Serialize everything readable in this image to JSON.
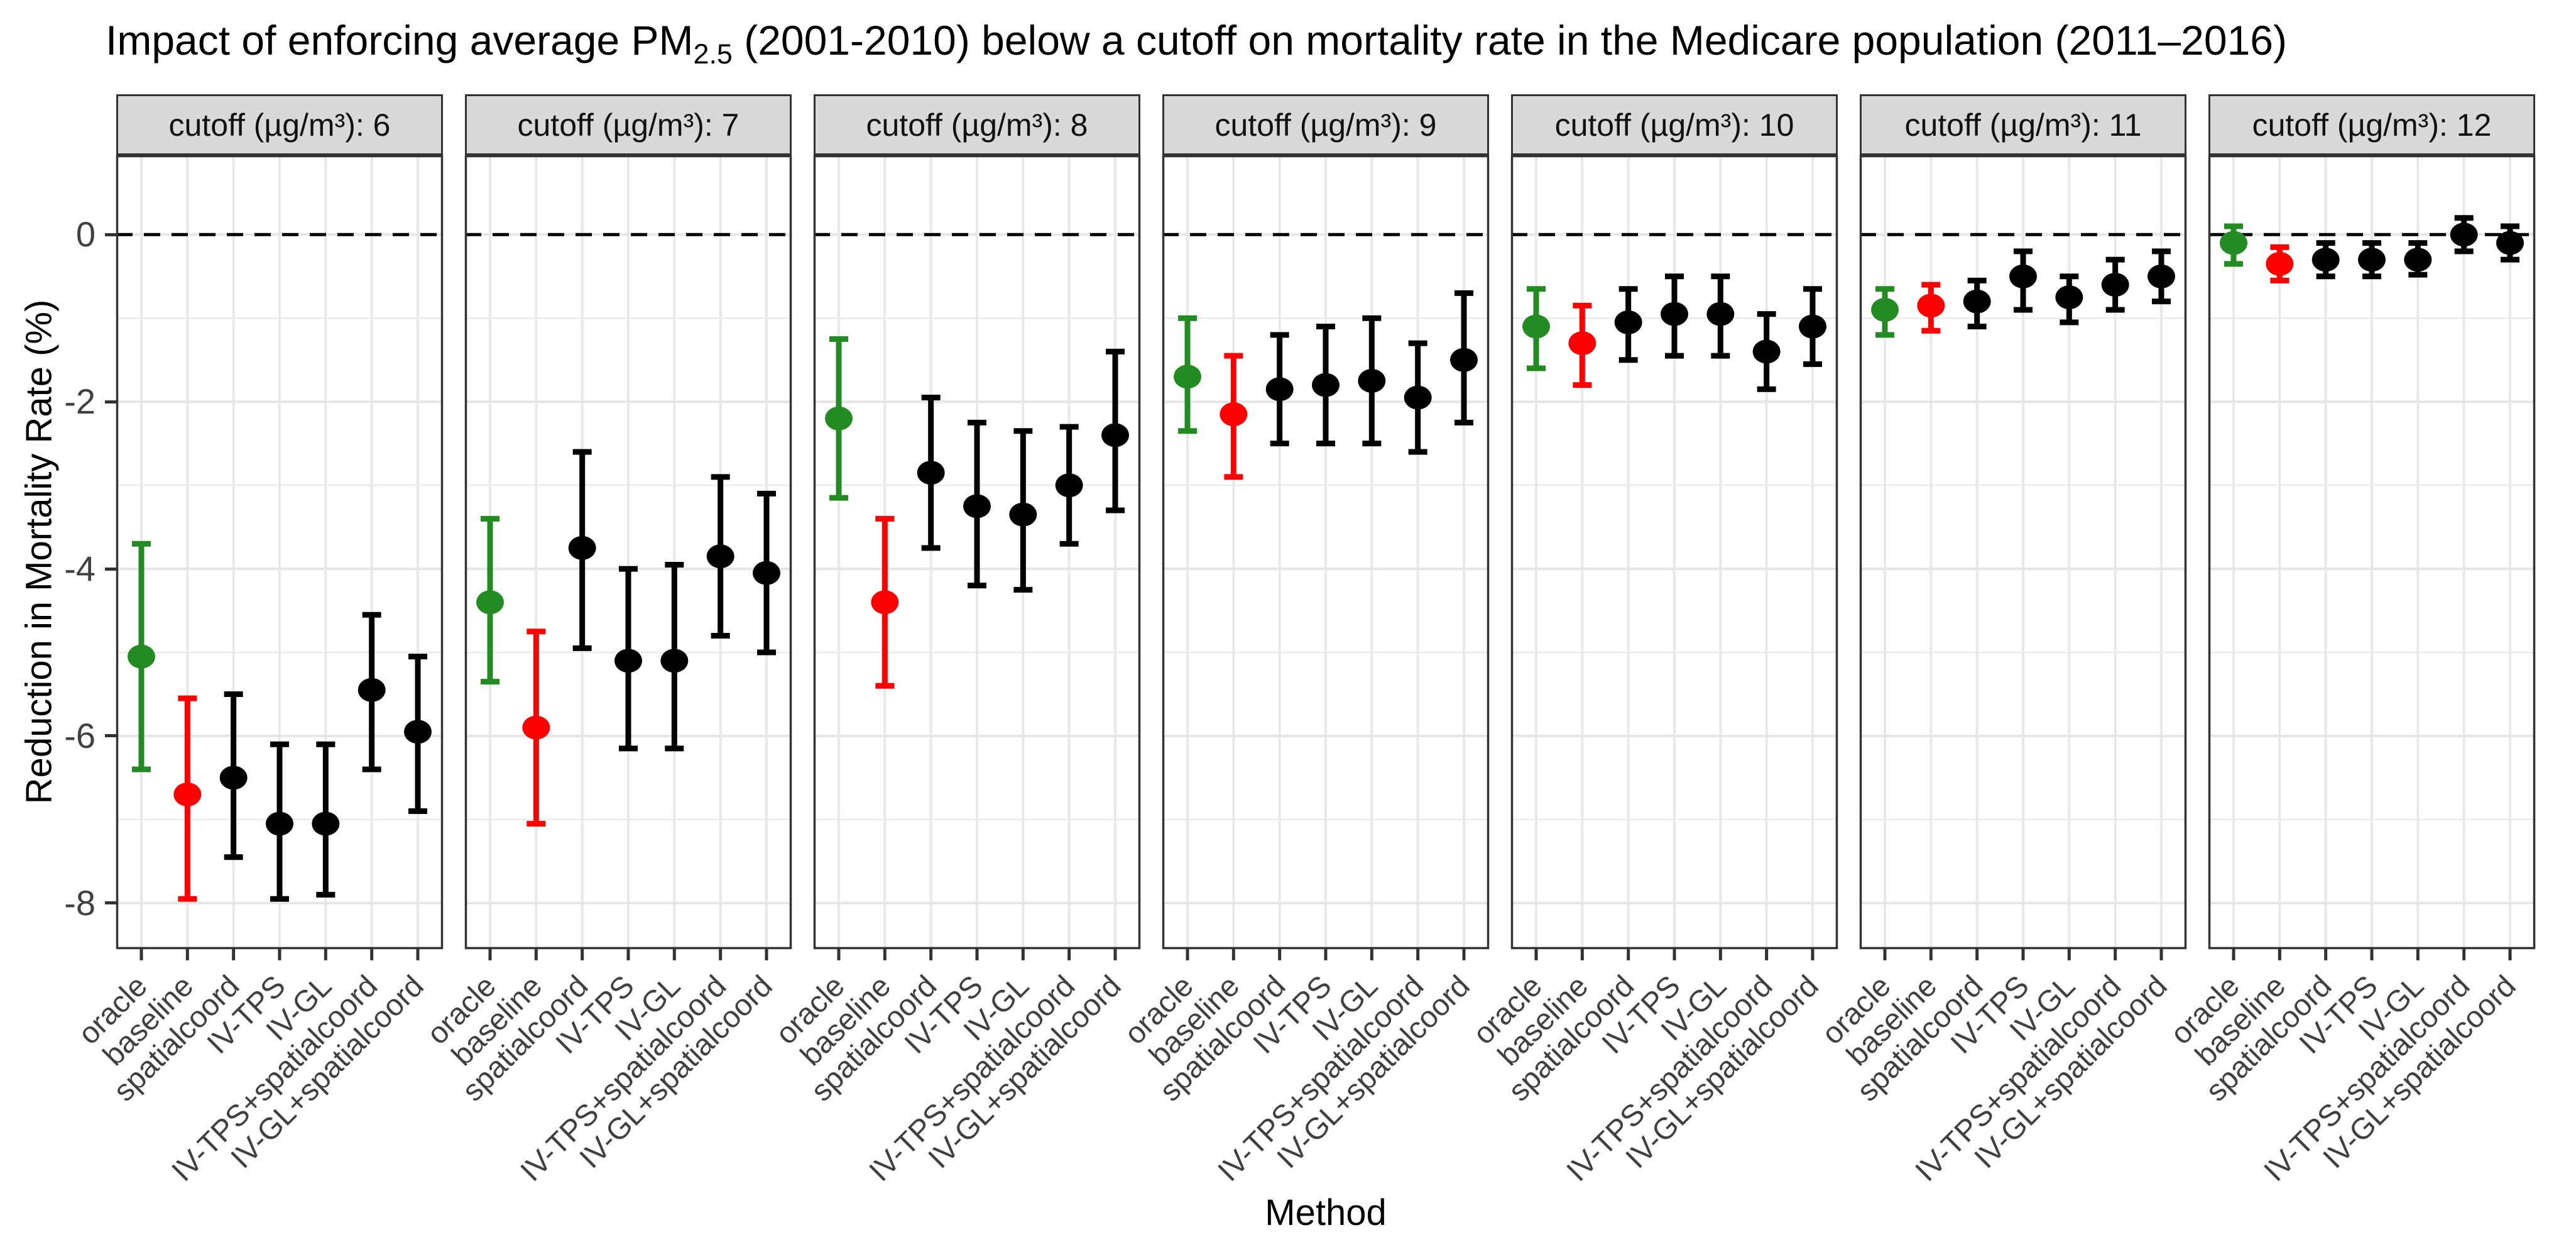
{
  "title": {
    "prefix": "Impact of enforcing average PM",
    "subscript": "2.5",
    "suffix": " (2001-2010) below a cutoff on mortality rate in the Medicare population (2011–2016)"
  },
  "y_axis": {
    "label": "Reduction in Mortality Rate (%)",
    "tick_values": [
      0,
      -2,
      -4,
      -6,
      -8
    ],
    "tick_labels": [
      "0",
      "-2",
      "-4",
      "-6",
      "-8"
    ]
  },
  "x_axis": {
    "label": "Method"
  },
  "chart_data": {
    "type": "pointrange",
    "facet_variable": "cutoff (µg/m³)",
    "grid": true,
    "legend_position": "none",
    "ylim": [
      0.95,
      -8.55
    ],
    "zero_reference_line": 0,
    "minor_gridlines": [
      -1,
      -3,
      -5,
      -7
    ],
    "methods": [
      "oracle",
      "baseline",
      "spatialcoord",
      "IV-TPS",
      "IV-GL",
      "IV-TPS+spatialcoord",
      "IV-GL+spatialcoord"
    ],
    "point_colors": [
      "#228B22",
      "#FF0000",
      "#000000",
      "#000000",
      "#000000",
      "#000000",
      "#000000"
    ],
    "color_legend": {
      "oracle": "#228B22",
      "baseline": "#FF0000",
      "other_methods": "#000000"
    },
    "facets": [
      {
        "label": "cutoff (µg/m³): 6",
        "cutoff": 6,
        "estimates": [
          -5.05,
          -6.7,
          -6.5,
          -7.05,
          -7.05,
          -5.45,
          -5.95
        ],
        "lower": [
          -6.4,
          -7.95,
          -7.45,
          -7.95,
          -7.9,
          -6.4,
          -6.9
        ],
        "upper": [
          -3.7,
          -5.55,
          -5.5,
          -6.1,
          -6.1,
          -4.55,
          -5.05
        ]
      },
      {
        "label": "cutoff (µg/m³): 7",
        "cutoff": 7,
        "estimates": [
          -4.4,
          -5.9,
          -3.75,
          -5.1,
          -5.1,
          -3.85,
          -4.05
        ],
        "lower": [
          -5.35,
          -7.05,
          -4.95,
          -6.15,
          -6.15,
          -4.8,
          -5.0
        ],
        "upper": [
          -3.4,
          -4.75,
          -2.6,
          -4.0,
          -3.95,
          -2.9,
          -3.1
        ]
      },
      {
        "label": "cutoff (µg/m³): 8",
        "cutoff": 8,
        "estimates": [
          -2.2,
          -4.4,
          -2.85,
          -3.25,
          -3.35,
          -3.0,
          -2.4
        ],
        "lower": [
          -3.15,
          -5.4,
          -3.75,
          -4.2,
          -4.25,
          -3.7,
          -3.3
        ],
        "upper": [
          -1.25,
          -3.4,
          -1.95,
          -2.25,
          -2.35,
          -2.3,
          -1.4
        ]
      },
      {
        "label": "cutoff (µg/m³): 9",
        "cutoff": 9,
        "estimates": [
          -1.7,
          -2.15,
          -1.85,
          -1.8,
          -1.75,
          -1.95,
          -1.5
        ],
        "lower": [
          -2.35,
          -2.9,
          -2.5,
          -2.5,
          -2.5,
          -2.6,
          -2.25
        ],
        "upper": [
          -1.0,
          -1.45,
          -1.2,
          -1.1,
          -1.0,
          -1.3,
          -0.7
        ]
      },
      {
        "label": "cutoff (µg/m³): 10",
        "cutoff": 10,
        "estimates": [
          -1.1,
          -1.3,
          -1.05,
          -0.95,
          -0.95,
          -1.4,
          -1.1
        ],
        "lower": [
          -1.6,
          -1.8,
          -1.5,
          -1.45,
          -1.45,
          -1.85,
          -1.55
        ],
        "upper": [
          -0.65,
          -0.85,
          -0.65,
          -0.5,
          -0.5,
          -0.95,
          -0.65
        ]
      },
      {
        "label": "cutoff (µg/m³): 11",
        "cutoff": 11,
        "estimates": [
          -0.9,
          -0.85,
          -0.8,
          -0.5,
          -0.75,
          -0.6,
          -0.5
        ],
        "lower": [
          -1.2,
          -1.15,
          -1.1,
          -0.9,
          -1.05,
          -0.9,
          -0.8
        ],
        "upper": [
          -0.65,
          -0.6,
          -0.55,
          -0.2,
          -0.5,
          -0.3,
          -0.2
        ]
      },
      {
        "label": "cutoff (µg/m³): 12",
        "cutoff": 12,
        "estimates": [
          -0.1,
          -0.35,
          -0.3,
          -0.3,
          -0.3,
          0.0,
          -0.1
        ],
        "lower": [
          -0.35,
          -0.55,
          -0.5,
          -0.5,
          -0.48,
          -0.2,
          -0.3
        ],
        "upper": [
          0.1,
          -0.15,
          -0.1,
          -0.1,
          -0.1,
          0.2,
          0.1
        ]
      }
    ]
  }
}
